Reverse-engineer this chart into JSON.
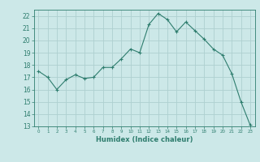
{
  "x": [
    0,
    1,
    2,
    3,
    4,
    5,
    6,
    7,
    8,
    9,
    10,
    11,
    12,
    13,
    14,
    15,
    16,
    17,
    18,
    19,
    20,
    21,
    22,
    23
  ],
  "y": [
    17.5,
    17.0,
    16.0,
    16.8,
    17.2,
    16.9,
    17.0,
    17.8,
    17.8,
    18.5,
    19.3,
    19.0,
    21.3,
    22.2,
    21.7,
    20.7,
    21.5,
    20.8,
    20.1,
    19.3,
    18.8,
    17.3,
    15.0,
    13.1
  ],
  "xlim": [
    -0.5,
    23.5
  ],
  "ylim": [
    13,
    22.5
  ],
  "yticks": [
    13,
    14,
    15,
    16,
    17,
    18,
    19,
    20,
    21,
    22
  ],
  "xticks": [
    0,
    1,
    2,
    3,
    4,
    5,
    6,
    7,
    8,
    9,
    10,
    11,
    12,
    13,
    14,
    15,
    16,
    17,
    18,
    19,
    20,
    21,
    22,
    23
  ],
  "xlabel": "Humidex (Indice chaleur)",
  "line_color": "#2e7d6e",
  "marker": "+",
  "bg_color": "#cce8e8",
  "grid_color": "#aed0d0",
  "tick_color": "#2e7d6e",
  "label_color": "#2e7d6e",
  "spine_color": "#2e7d6e"
}
